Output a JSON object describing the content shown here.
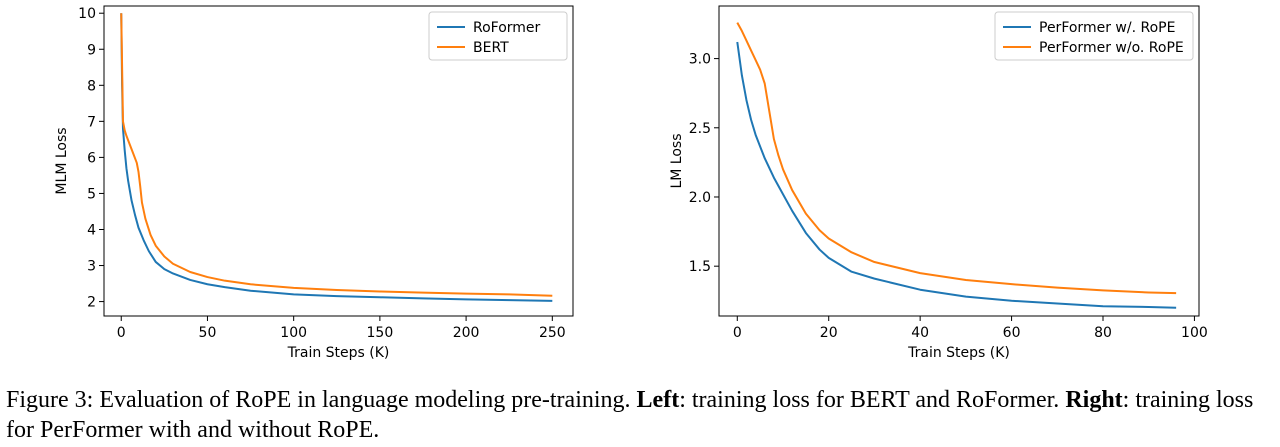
{
  "chart_data": [
    {
      "type": "line",
      "xlabel": "Train Steps (K)",
      "ylabel": "MLM Loss",
      "xlim": [
        -10,
        262
      ],
      "ylim": [
        1.6,
        10.2
      ],
      "xticks": [
        0,
        50,
        100,
        150,
        200,
        250
      ],
      "yticks": [
        2,
        3,
        4,
        5,
        6,
        7,
        8,
        9,
        10
      ],
      "legend": "top-right",
      "grid": false,
      "series": [
        {
          "name": "RoFormer",
          "color": "#1f77b4",
          "x": [
            0,
            0.5,
            1,
            2,
            3,
            4,
            6,
            8,
            10,
            13,
            16,
            20,
            25,
            30,
            40,
            50,
            60,
            75,
            100,
            125,
            150,
            175,
            200,
            225,
            250
          ],
          "y": [
            10.0,
            8.0,
            6.8,
            6.2,
            5.7,
            5.35,
            4.8,
            4.4,
            4.05,
            3.7,
            3.4,
            3.1,
            2.9,
            2.78,
            2.6,
            2.48,
            2.4,
            2.3,
            2.2,
            2.15,
            2.12,
            2.09,
            2.06,
            2.04,
            2.02
          ]
        },
        {
          "name": "BERT",
          "color": "#ff7f0e",
          "x": [
            0,
            0.5,
            1,
            2,
            3,
            5,
            7,
            9,
            10,
            11,
            12,
            14,
            17,
            20,
            25,
            30,
            40,
            50,
            60,
            75,
            100,
            125,
            150,
            175,
            200,
            225,
            250
          ],
          "y": [
            10.0,
            8.5,
            7.0,
            6.75,
            6.6,
            6.35,
            6.1,
            5.85,
            5.6,
            5.2,
            4.75,
            4.3,
            3.85,
            3.55,
            3.25,
            3.05,
            2.82,
            2.68,
            2.58,
            2.48,
            2.38,
            2.32,
            2.28,
            2.25,
            2.22,
            2.2,
            2.16
          ]
        }
      ]
    },
    {
      "type": "line",
      "xlabel": "Train Steps (K)",
      "ylabel": "LM Loss",
      "xlim": [
        -4,
        101
      ],
      "ylim": [
        1.14,
        3.38
      ],
      "xticks": [
        0,
        20,
        40,
        60,
        80,
        100
      ],
      "yticks": [
        1.5,
        2.0,
        2.5,
        3.0
      ],
      "legend": "top-right",
      "grid": false,
      "series": [
        {
          "name": "PerFormer w/. RoPE",
          "color": "#1f77b4",
          "x": [
            0,
            1,
            2,
            3,
            4,
            6,
            8,
            10,
            12,
            15,
            18,
            20,
            25,
            30,
            40,
            50,
            60,
            70,
            80,
            90,
            96
          ],
          "y": [
            3.12,
            2.88,
            2.7,
            2.56,
            2.45,
            2.28,
            2.14,
            2.02,
            1.9,
            1.74,
            1.62,
            1.56,
            1.46,
            1.41,
            1.33,
            1.28,
            1.25,
            1.23,
            1.21,
            1.205,
            1.2
          ]
        },
        {
          "name": "PerFormer w/o. RoPE",
          "color": "#ff7f0e",
          "x": [
            0,
            1,
            2,
            3,
            4,
            5,
            6,
            7,
            8,
            9,
            10,
            12,
            15,
            18,
            20,
            25,
            30,
            40,
            50,
            60,
            70,
            80,
            90,
            96
          ],
          "y": [
            3.26,
            3.2,
            3.13,
            3.06,
            2.99,
            2.92,
            2.82,
            2.62,
            2.42,
            2.3,
            2.2,
            2.05,
            1.88,
            1.76,
            1.7,
            1.6,
            1.53,
            1.45,
            1.4,
            1.37,
            1.345,
            1.325,
            1.31,
            1.305
          ]
        }
      ]
    }
  ],
  "caption": {
    "prefix": "Figure 3: Evaluation of RoPE in language modeling pre-training. ",
    "left_label": "Left",
    "left_text": ": training loss for BERT and RoFormer. ",
    "right_label": "Right",
    "right_text": ": training loss for PerFormer with and without RoPE."
  }
}
